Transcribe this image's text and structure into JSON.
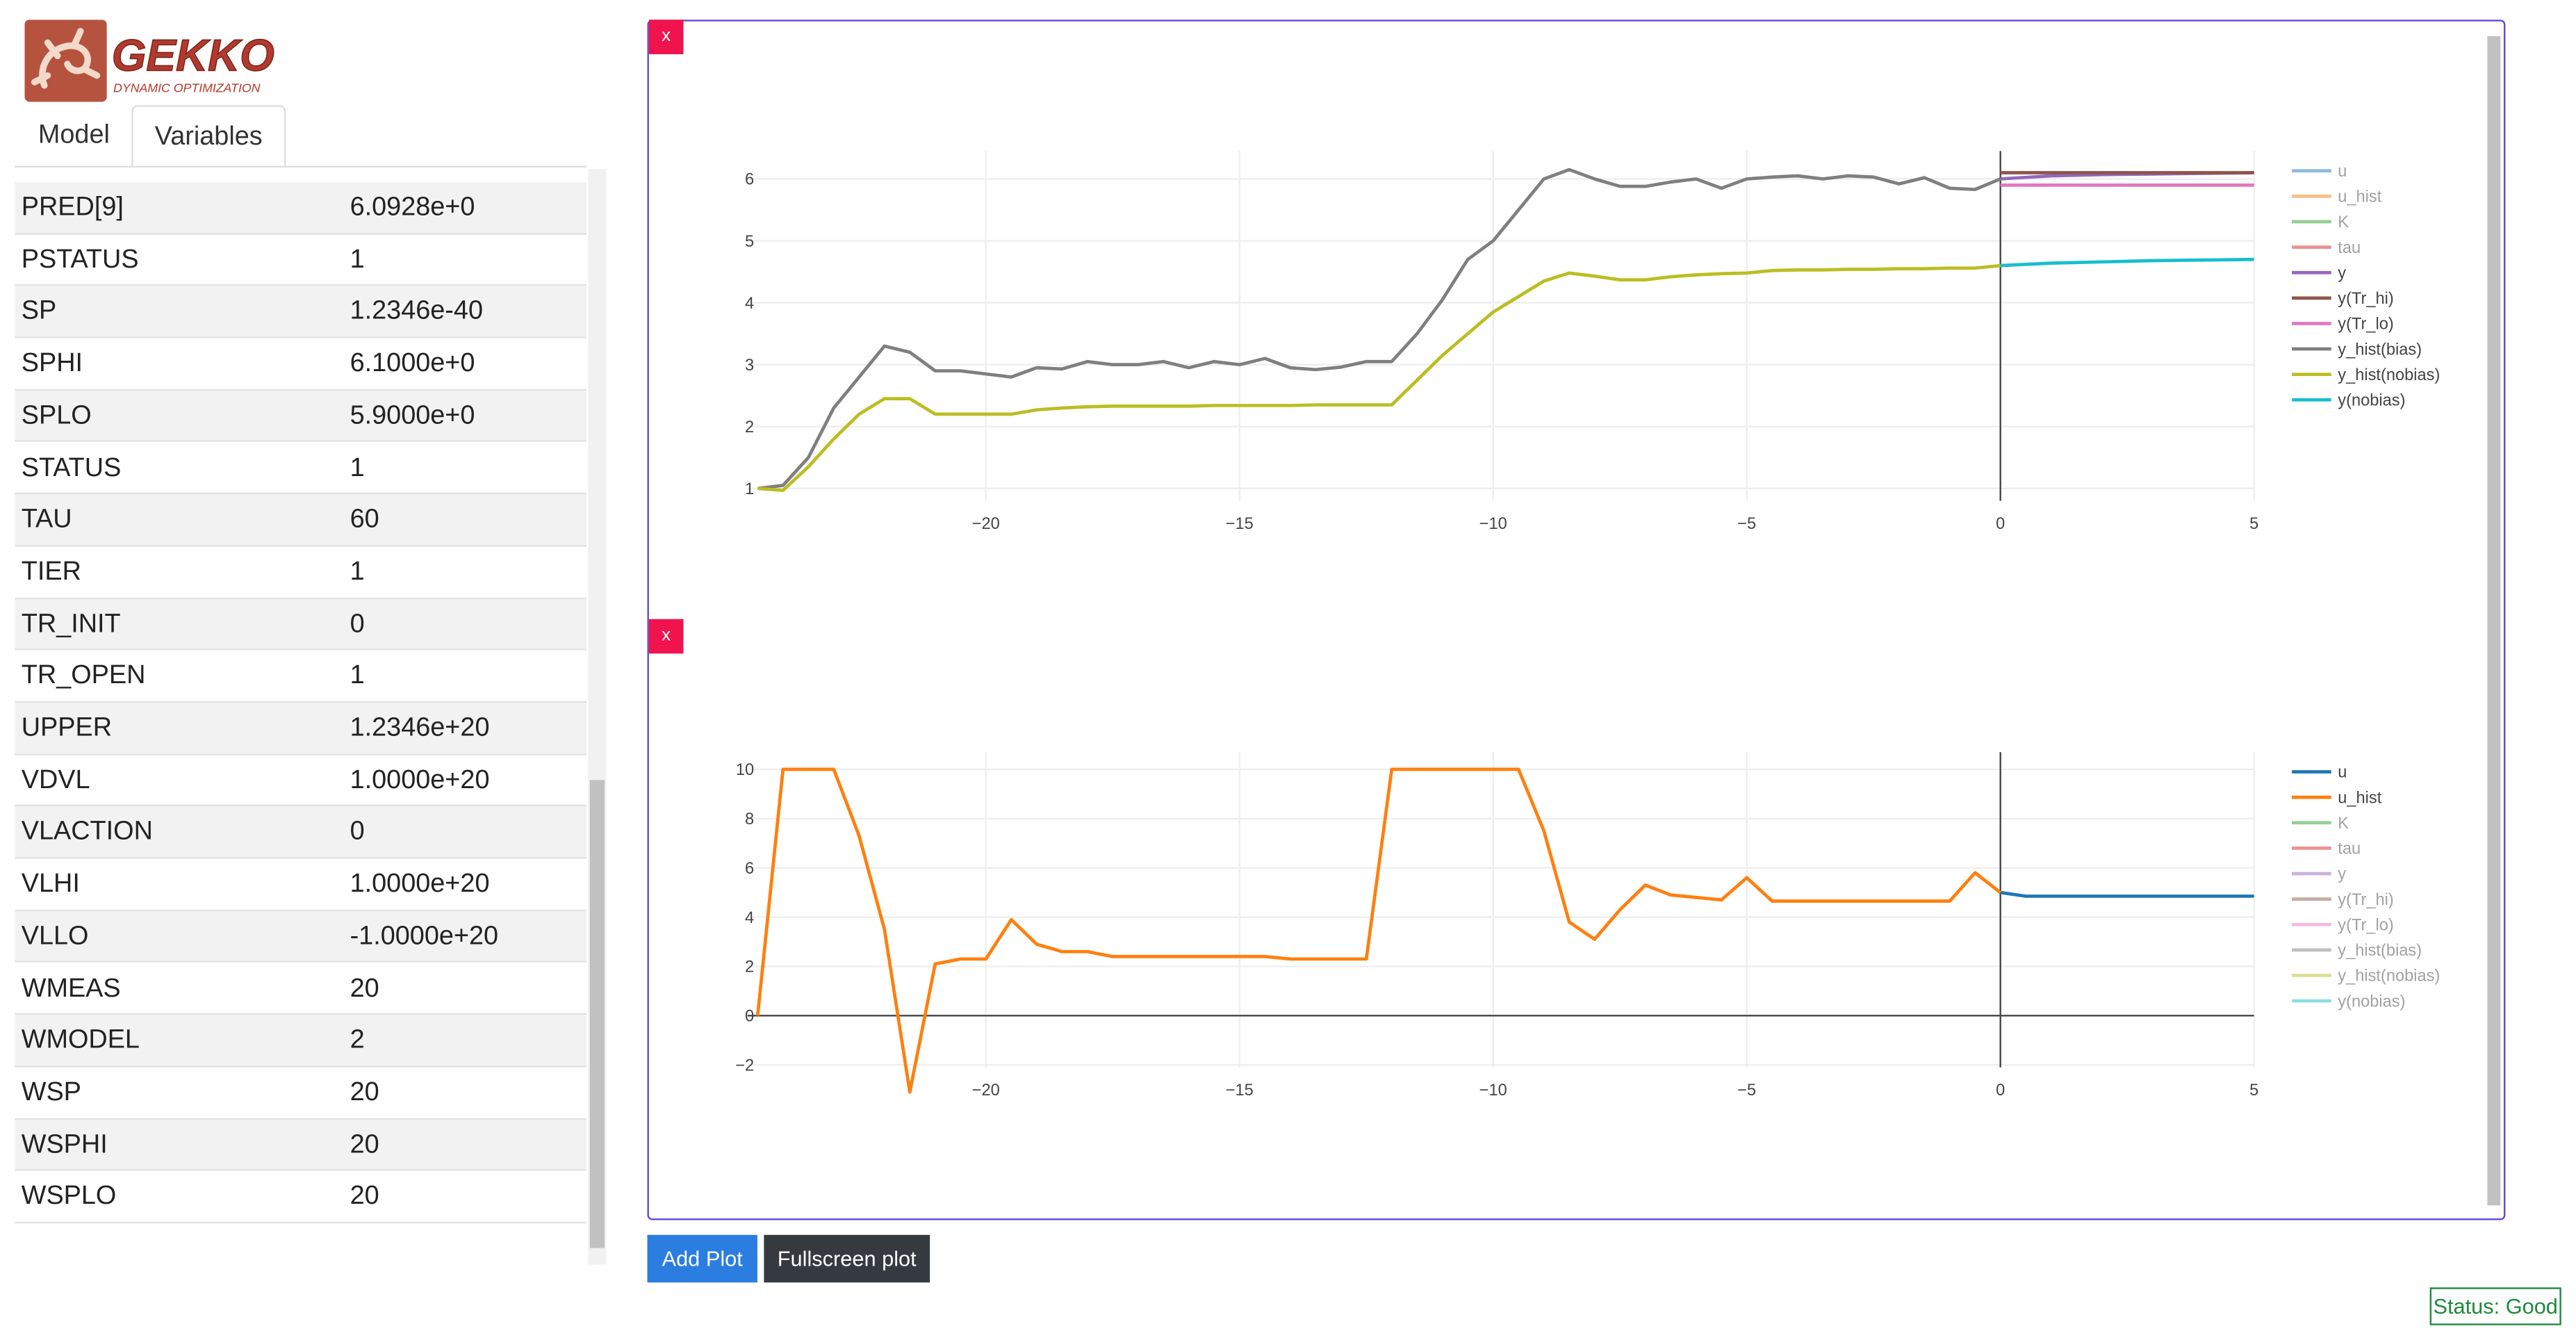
{
  "header": {
    "logo_title": "GEKKO",
    "logo_subtitle": "DYNAMIC OPTIMIZATION"
  },
  "tabs": [
    "Model",
    "Variables"
  ],
  "table": {
    "rows": [
      [
        "PRED[9]",
        "6.0928e+0"
      ],
      [
        "PSTATUS",
        "1"
      ],
      [
        "SP",
        "1.2346e-40"
      ],
      [
        "SPHI",
        "6.1000e+0"
      ],
      [
        "SPLO",
        "5.9000e+0"
      ],
      [
        "STATUS",
        "1"
      ],
      [
        "TAU",
        "60"
      ],
      [
        "TIER",
        "1"
      ],
      [
        "TR_INIT",
        "0"
      ],
      [
        "TR_OPEN",
        "1"
      ],
      [
        "UPPER",
        "1.2346e+20"
      ],
      [
        "VDVL",
        "1.0000e+20"
      ],
      [
        "VLACTION",
        "0"
      ],
      [
        "VLHI",
        "1.0000e+20"
      ],
      [
        "VLLO",
        "-1.0000e+20"
      ],
      [
        "WMEAS",
        "20"
      ],
      [
        "WMODEL",
        "2"
      ],
      [
        "WSP",
        "20"
      ],
      [
        "WSPHI",
        "20"
      ],
      [
        "WSPLO",
        "20"
      ]
    ]
  },
  "close_buttons": [
    "x",
    "x"
  ],
  "buttons": [
    "Add Plot",
    "Fullscreen plot"
  ],
  "status": "Status: Good",
  "chart_data": [
    {
      "type": "line",
      "xlim": [
        -24.7,
        5
      ],
      "ylim": [
        0.8,
        6.45
      ],
      "xticks": [
        {
          "value": -20,
          "label": "−20"
        },
        {
          "value": -15,
          "label": "−15"
        },
        {
          "value": -10,
          "label": "−10"
        },
        {
          "value": -5,
          "label": "−5"
        },
        0,
        5
      ],
      "yticks": [
        1,
        2,
        3,
        4,
        5,
        6
      ],
      "grid": true,
      "zeroline": true,
      "series": [
        {
          "name": "u",
          "color": "#1f77b4",
          "visible": false,
          "x": [],
          "values": []
        },
        {
          "name": "u_hist",
          "color": "#ff7f0e",
          "visible": false,
          "x": [],
          "values": []
        },
        {
          "name": "K",
          "color": "#2ca02c",
          "visible": false,
          "x": [],
          "values": []
        },
        {
          "name": "tau",
          "color": "#d62728",
          "visible": false,
          "x": [],
          "values": []
        },
        {
          "name": "y",
          "color": "#9467bd",
          "visible": true,
          "x": [
            0,
            1,
            2,
            3,
            4,
            5
          ],
          "values": [
            6.0,
            6.05,
            6.07,
            6.08,
            6.09,
            6.1
          ]
        },
        {
          "name": "y(Tr_hi)",
          "color": "#8c564b",
          "visible": true,
          "x": [
            0,
            1,
            2,
            3,
            4,
            5
          ],
          "values": [
            6.1,
            6.1,
            6.1,
            6.1,
            6.1,
            6.1
          ]
        },
        {
          "name": "y(Tr_lo)",
          "color": "#e377c2",
          "visible": true,
          "x": [
            0,
            1,
            2,
            3,
            4,
            5
          ],
          "values": [
            5.9,
            5.9,
            5.9,
            5.9,
            5.9,
            5.9
          ]
        },
        {
          "name": "y_hist(bias)",
          "color": "#7f7f7f",
          "visible": true,
          "x": [
            -24.5,
            -24,
            -23.5,
            -23,
            -22.5,
            -22,
            -21.5,
            -21,
            -20.5,
            -20,
            -19.5,
            -19,
            -18.5,
            -18,
            -17.5,
            -17,
            -16.5,
            -16,
            -15.5,
            -15,
            -14.5,
            -14,
            -13.5,
            -13,
            -12.5,
            -12,
            -11.5,
            -11,
            -10.5,
            -10,
            -9.5,
            -9,
            -8.5,
            -8,
            -7.5,
            -7,
            -6.5,
            -6,
            -5.5,
            -5,
            -4.5,
            -4,
            -3.5,
            -3,
            -2.5,
            -2,
            -1.5,
            -1,
            -0.5,
            0
          ],
          "values": [
            1.0,
            1.05,
            1.5,
            2.3,
            2.8,
            3.3,
            3.2,
            2.9,
            2.9,
            2.85,
            2.8,
            2.95,
            2.93,
            3.05,
            3.0,
            3.0,
            3.05,
            2.95,
            3.05,
            3.0,
            3.1,
            2.95,
            2.92,
            2.96,
            3.05,
            3.05,
            3.5,
            4.05,
            4.7,
            5.0,
            5.5,
            6.0,
            6.15,
            6.0,
            5.88,
            5.88,
            5.95,
            6.0,
            5.85,
            6.0,
            6.03,
            6.05,
            6.0,
            6.05,
            6.03,
            5.92,
            6.02,
            5.85,
            5.83,
            6.0
          ]
        },
        {
          "name": "y_hist(nobias)",
          "color": "#bcbd22",
          "visible": true,
          "x": [
            -24.5,
            -24,
            -23.5,
            -23,
            -22.5,
            -22,
            -21.5,
            -21,
            -20.5,
            -20,
            -19.5,
            -19,
            -18.5,
            -18,
            -17.5,
            -17,
            -16.5,
            -16,
            -15.5,
            -15,
            -14.5,
            -14,
            -13.5,
            -13,
            -12.5,
            -12,
            -11.5,
            -11,
            -10.5,
            -10,
            -9.5,
            -9,
            -8.5,
            -8,
            -7.5,
            -7,
            -6.5,
            -6,
            -5.5,
            -5,
            -4.5,
            -4,
            -3.5,
            -3,
            -2.5,
            -2,
            -1.5,
            -1,
            -0.5,
            0
          ],
          "values": [
            1.0,
            0.97,
            1.35,
            1.8,
            2.2,
            2.45,
            2.45,
            2.2,
            2.2,
            2.2,
            2.2,
            2.27,
            2.3,
            2.32,
            2.33,
            2.33,
            2.33,
            2.33,
            2.34,
            2.34,
            2.34,
            2.34,
            2.35,
            2.35,
            2.35,
            2.35,
            2.75,
            3.15,
            3.5,
            3.85,
            4.1,
            4.35,
            4.48,
            4.43,
            4.37,
            4.37,
            4.42,
            4.45,
            4.47,
            4.48,
            4.52,
            4.53,
            4.53,
            4.54,
            4.54,
            4.55,
            4.55,
            4.56,
            4.56,
            4.6
          ]
        },
        {
          "name": "y(nobias)",
          "color": "#17becf",
          "visible": true,
          "x": [
            0,
            1,
            2,
            3,
            4,
            5
          ],
          "values": [
            4.6,
            4.64,
            4.66,
            4.68,
            4.69,
            4.7
          ]
        }
      ]
    },
    {
      "type": "line",
      "xlim": [
        -24.7,
        5
      ],
      "ylim": [
        -2.1,
        10.7
      ],
      "xticks": [
        {
          "value": -20,
          "label": "−20"
        },
        {
          "value": -15,
          "label": "−15"
        },
        {
          "value": -10,
          "label": "−10"
        },
        {
          "value": -5,
          "label": "−5"
        },
        0,
        5
      ],
      "yticks": [
        {
          "value": -2,
          "label": "−2"
        },
        0,
        2,
        4,
        6,
        8,
        10
      ],
      "grid": true,
      "zeroline": true,
      "series": [
        {
          "name": "u",
          "color": "#1f77b4",
          "visible": true,
          "x": [
            0,
            0.5,
            1,
            2,
            3,
            4,
            5
          ],
          "values": [
            5.0,
            4.85,
            4.85,
            4.85,
            4.85,
            4.85,
            4.85
          ]
        },
        {
          "name": "u_hist",
          "color": "#ff7f0e",
          "visible": true,
          "x": [
            -24.5,
            -24,
            -23.5,
            -23,
            -22.5,
            -22,
            -21.5,
            -21,
            -20.5,
            -20,
            -19.5,
            -19,
            -18.5,
            -18,
            -17.5,
            -17,
            -16.5,
            -16,
            -15.5,
            -15,
            -14.5,
            -14,
            -13.5,
            -13,
            -12.5,
            -12,
            -11.5,
            -11,
            -10.5,
            -10,
            -9.5,
            -9,
            -8.5,
            -8,
            -7.5,
            -7,
            -6.5,
            -6,
            -5.5,
            -5,
            -4.5,
            -4,
            -3.5,
            -3,
            -2.5,
            -2,
            -1.5,
            -1,
            -0.5,
            0
          ],
          "values": [
            0,
            10,
            10,
            10,
            7.3,
            3.5,
            -3.1,
            2.1,
            2.3,
            2.3,
            3.9,
            2.9,
            2.6,
            2.6,
            2.4,
            2.4,
            2.4,
            2.4,
            2.4,
            2.4,
            2.4,
            2.3,
            2.3,
            2.3,
            2.3,
            10,
            10,
            10,
            10,
            10,
            10,
            7.5,
            3.8,
            3.1,
            4.3,
            5.3,
            4.9,
            4.8,
            4.7,
            5.6,
            4.65,
            4.65,
            4.65,
            4.65,
            4.65,
            4.65,
            4.65,
            4.65,
            5.8,
            5.0
          ]
        },
        {
          "name": "K",
          "color": "#2ca02c",
          "visible": false,
          "x": [],
          "values": []
        },
        {
          "name": "tau",
          "color": "#d62728",
          "visible": false,
          "x": [],
          "values": []
        },
        {
          "name": "y",
          "color": "#9467bd",
          "visible": false,
          "x": [],
          "values": []
        },
        {
          "name": "y(Tr_hi)",
          "color": "#8c564b",
          "visible": false,
          "x": [],
          "values": []
        },
        {
          "name": "y(Tr_lo)",
          "color": "#e377c2",
          "visible": false,
          "x": [],
          "values": []
        },
        {
          "name": "y_hist(bias)",
          "color": "#7f7f7f",
          "visible": false,
          "x": [],
          "values": []
        },
        {
          "name": "y_hist(nobias)",
          "color": "#bcbd22",
          "visible": false,
          "x": [],
          "values": []
        },
        {
          "name": "y(nobias)",
          "color": "#17becf",
          "visible": false,
          "x": [],
          "values": []
        }
      ]
    }
  ]
}
